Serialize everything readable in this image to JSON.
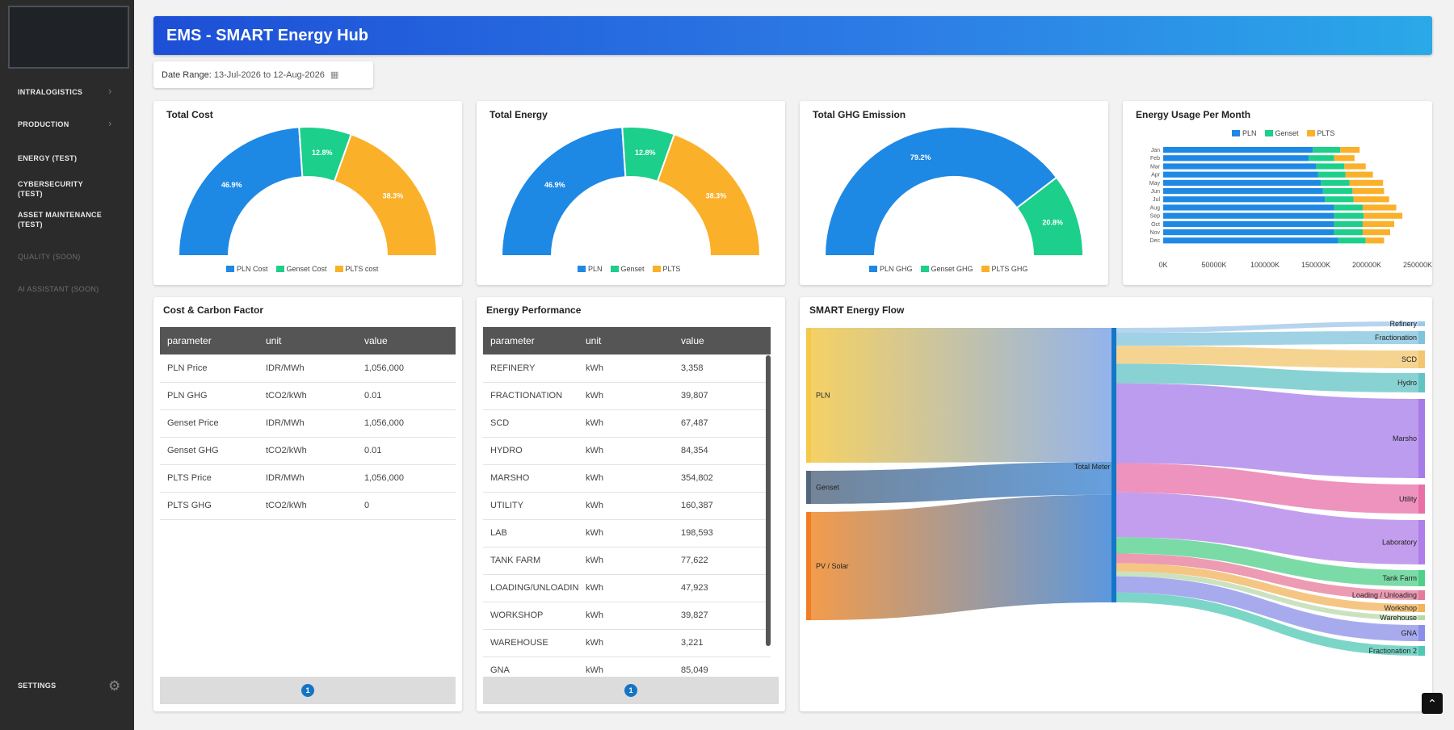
{
  "app": {
    "title": "EMS - SMART Energy Hub"
  },
  "sidebar": {
    "items": [
      {
        "label": "INTRALOGISTICS",
        "state": "enabled",
        "has_chevron": true
      },
      {
        "label": "PRODUCTION",
        "state": "enabled",
        "has_chevron": true
      },
      {
        "label": "ENERGY (TEST)",
        "state": "enabled",
        "has_chevron": false
      },
      {
        "label": "CYBERSECURITY (TEST)",
        "state": "enabled",
        "has_chevron": false
      },
      {
        "label": "ASSET MAINTENANCE (TEST)",
        "state": "enabled",
        "has_chevron": false
      },
      {
        "label": "QUALITY (SOON)",
        "state": "disabled",
        "has_chevron": false
      },
      {
        "label": "AI ASSISTANT (SOON)",
        "state": "disabled",
        "has_chevron": false
      }
    ],
    "settings_label": "SETTINGS",
    "settings_icon": "gear-icon"
  },
  "date_range": {
    "label": "Date Range:",
    "value": "13-Jul-2026 to 12-Aug-2026",
    "icon": "calendar-icon"
  },
  "colors": {
    "pln": "#1e88e5",
    "genset": "#1ccf8a",
    "plts": "#fbb02a",
    "header_start": "#1d4fd6",
    "header_end": "#2aa9e8",
    "table_header": "#555555",
    "pager": "#1574c4"
  },
  "cards": {
    "total_cost": {
      "title": "Total Cost",
      "legend": [
        "PLN Cost",
        "Genset Cost",
        "PLTS cost"
      ]
    },
    "total_energy": {
      "title": "Total Energy",
      "legend": [
        "PLN",
        "Genset",
        "PLTS"
      ]
    },
    "total_ghg": {
      "title": "Total GHG Emission",
      "legend": [
        "PLN GHG",
        "Genset GHG",
        "PLTS GHG"
      ]
    },
    "usage_per_month": {
      "title": "Energy Usage Per Month",
      "legend": [
        "PLN",
        "Genset",
        "PLTS"
      ]
    },
    "cost_carbon": {
      "title": "Cost & Carbon Factor",
      "columns": [
        "parameter",
        "unit",
        "value"
      ],
      "rows": [
        [
          "PLN Price",
          "IDR/MWh",
          "1,056,000"
        ],
        [
          "PLN GHG",
          "tCO2/kWh",
          "0.01"
        ],
        [
          "Genset Price",
          "IDR/MWh",
          "1,056,000"
        ],
        [
          "Genset GHG",
          "tCO2/kWh",
          "0.01"
        ],
        [
          "PLTS Price",
          "IDR/MWh",
          "1,056,000"
        ],
        [
          "PLTS GHG",
          "tCO2/kWh",
          "0"
        ]
      ],
      "page": "1"
    },
    "energy_performance": {
      "title": "Energy Performance",
      "columns": [
        "parameter",
        "unit",
        "value"
      ],
      "rows": [
        [
          "REFINERY",
          "kWh",
          "3,358"
        ],
        [
          "FRACTIONATION",
          "kWh",
          "39,807"
        ],
        [
          "SCD",
          "kWh",
          "67,487"
        ],
        [
          "HYDRO",
          "kWh",
          "84,354"
        ],
        [
          "MARSHO",
          "kWh",
          "354,802"
        ],
        [
          "UTILITY",
          "kWh",
          "160,387"
        ],
        [
          "LAB",
          "kWh",
          "198,593"
        ],
        [
          "TANK FARM",
          "kWh",
          "77,622"
        ],
        [
          "LOADING/UNLOADING",
          "kWh",
          "47,923"
        ],
        [
          "WORKSHOP",
          "kWh",
          "39,827"
        ],
        [
          "WAREHOUSE",
          "kWh",
          "3,221"
        ],
        [
          "GNA",
          "kWh",
          "85,049"
        ]
      ],
      "page": "1"
    },
    "energy_flow": {
      "title": "SMART Energy Flow",
      "sources": [
        "PLN",
        "Genset",
        "PV / Solar"
      ],
      "hub": "Total Meter",
      "targets": [
        "Refinery",
        "Fractionation",
        "SCD",
        "Hydro",
        "Marsho",
        "Utility",
        "Laboratory",
        "Tank Farm",
        "Loading / Unloading",
        "Workshop",
        "Warehouse",
        "GNA",
        "Fractionation 2"
      ]
    }
  },
  "chart_data": [
    {
      "type": "pie",
      "title": "Total Cost",
      "variant": "half-donut",
      "labels": [
        "PLN Cost",
        "Genset Cost",
        "PLTS cost"
      ],
      "values": [
        46.9,
        12.8,
        38.3
      ],
      "value_labels": [
        "46.9%",
        "12.8%",
        "38.3%"
      ]
    },
    {
      "type": "pie",
      "title": "Total Energy",
      "variant": "half-donut",
      "labels": [
        "PLN",
        "Genset",
        "PLTS"
      ],
      "values": [
        46.9,
        12.8,
        38.3
      ],
      "value_labels": [
        "46.9%",
        "12.8%",
        "38.3%"
      ]
    },
    {
      "type": "pie",
      "title": "Total GHG Emission",
      "variant": "half-donut",
      "labels": [
        "PLN GHG",
        "Genset GHG",
        "PLTS GHG"
      ],
      "values": [
        79.2,
        20.8,
        0
      ],
      "value_labels": [
        "79.2%",
        "20.8%",
        ""
      ]
    },
    {
      "type": "bar",
      "orientation": "horizontal",
      "stacked": true,
      "title": "Energy Usage Per Month",
      "categories": [
        "Jan",
        "Feb",
        "Mar",
        "Apr",
        "May",
        "Jun",
        "Jul",
        "Aug",
        "Sep",
        "Oct",
        "Nov",
        "Dec"
      ],
      "series": [
        {
          "name": "PLN",
          "values": [
            147000,
            143000,
            150000,
            152000,
            155000,
            157000,
            159000,
            168000,
            168000,
            168000,
            168000,
            172000
          ]
        },
        {
          "name": "Genset",
          "values": [
            27000,
            25000,
            28000,
            27000,
            28000,
            29000,
            28000,
            28000,
            29000,
            28000,
            28000,
            27000
          ]
        },
        {
          "name": "PLTS",
          "values": [
            19000,
            20000,
            21000,
            27000,
            33000,
            31000,
            35000,
            33000,
            38000,
            31000,
            27000,
            18000
          ]
        }
      ],
      "xticks": [
        "0K",
        "50000K",
        "100000K",
        "150000K",
        "200000K",
        "250000K"
      ],
      "xlim": [
        0,
        250000
      ],
      "legend": "top"
    }
  ]
}
